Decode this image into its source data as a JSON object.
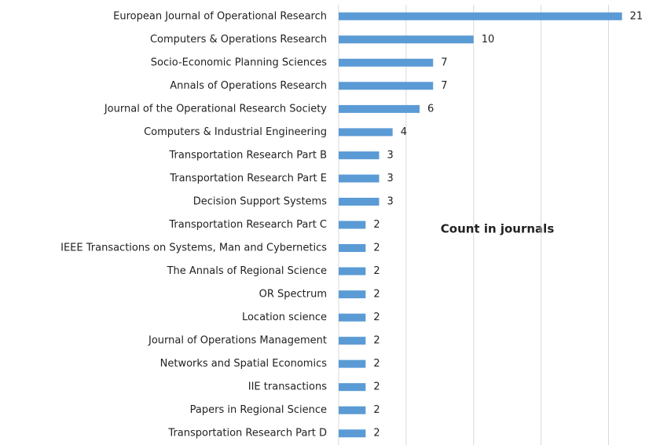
{
  "chart_data": {
    "type": "barh",
    "title": "Count in journals",
    "categories": [
      "European Journal of Operational Research",
      "Computers & Operations Research",
      "Socio-Economic Planning Sciences",
      "Annals of Operations Research",
      "Journal of the Operational Research Society",
      "Computers & Industrial Engineering",
      "Transportation Research Part B",
      "Transportation Research Part E",
      "Decision Support Systems",
      "Transportation Research Part C",
      "IEEE Transactions on Systems, Man and Cybernetics",
      "The Annals of Regional Science",
      "OR Spectrum",
      "Location science",
      "Journal of Operations Management",
      "Networks and Spatial Economics",
      "IIE transactions",
      "Papers in Regional Science",
      "Transportation Research Part D"
    ],
    "values": [
      21,
      10,
      7,
      7,
      6,
      4,
      3,
      3,
      3,
      2,
      2,
      2,
      2,
      2,
      2,
      2,
      2,
      2,
      2
    ],
    "color": "#5b9bd5",
    "xlim": [
      0,
      23
    ],
    "xticks": [
      0,
      5,
      10,
      15,
      20
    ],
    "grid": true
  }
}
